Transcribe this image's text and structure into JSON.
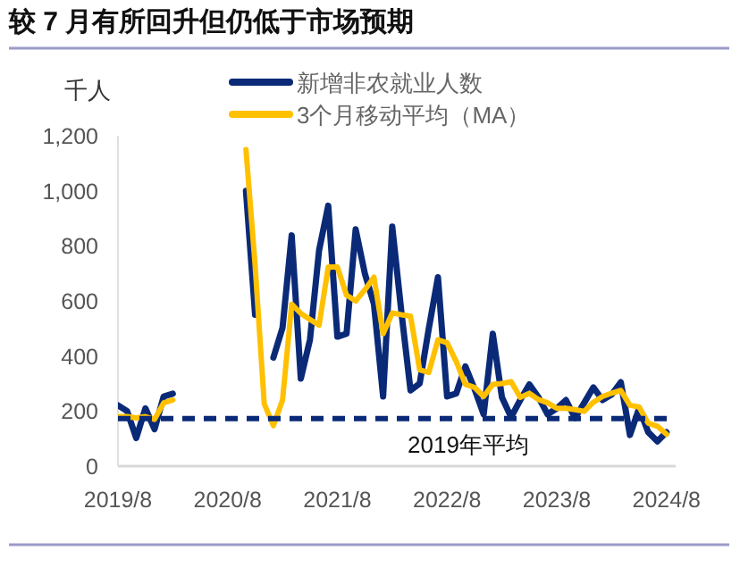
{
  "chart_data": {
    "type": "line",
    "title": "较 7 月有所回升但仍低于市场预期",
    "ylabel": "千人",
    "x": [
      "2019-08",
      "2019-09",
      "2019-10",
      "2019-11",
      "2019-12",
      "2020-01",
      "2020-02",
      "2020-03",
      "2020-04",
      "2020-05",
      "2020-06",
      "2020-07",
      "2020-08",
      "2020-09",
      "2020-10",
      "2020-11",
      "2020-12",
      "2021-01",
      "2021-02",
      "2021-03",
      "2021-04",
      "2021-05",
      "2021-06",
      "2021-07",
      "2021-08",
      "2021-09",
      "2021-10",
      "2021-11",
      "2021-12",
      "2022-01",
      "2022-02",
      "2022-03",
      "2022-04",
      "2022-05",
      "2022-06",
      "2022-07",
      "2022-08",
      "2022-09",
      "2022-10",
      "2022-11",
      "2022-12",
      "2023-01",
      "2023-02",
      "2023-03",
      "2023-04",
      "2023-05",
      "2023-06",
      "2023-07",
      "2023-08",
      "2023-09",
      "2023-10",
      "2023-11",
      "2023-12",
      "2024-01",
      "2024-02",
      "2024-03",
      "2024-04",
      "2024-05",
      "2024-06",
      "2024-07",
      "2024-08"
    ],
    "series": [
      {
        "name": "新增非农就业人数",
        "color": "#0a2a78",
        "values": [
          221,
          200,
          102,
          210,
          134,
          253,
          263,
          null,
          null,
          null,
          null,
          null,
          null,
          null,
          1000,
          550,
          null,
          394,
          503,
          838,
          318,
          459,
          784,
          946,
          470,
          481,
          860,
          700,
          589,
          253,
          870,
          560,
          275,
          300,
          500,
          686,
          253,
          264,
          362,
          280,
          188,
          481,
          250,
          178,
          240,
          297,
          250,
          188,
          210,
          240,
          175,
          230,
          286,
          240,
          260,
          305,
          113,
          210,
          123,
          90,
          123
        ]
      },
      {
        "name": "3个月移动平均（MA）",
        "color": "#ffc000",
        "values": [
          180,
          180,
          175,
          180,
          170,
          230,
          240,
          null,
          null,
          null,
          null,
          null,
          null,
          null,
          1150,
          730,
          226,
          147,
          240,
          588,
          555,
          533,
          512,
          723,
          723,
          621,
          600,
          640,
          686,
          481,
          556,
          550,
          545,
          350,
          340,
          459,
          448,
          380,
          297,
          286,
          253,
          297,
          300,
          307,
          250,
          264,
          242,
          230,
          210,
          210,
          205,
          199,
          232,
          253,
          265,
          275,
          221,
          215,
          156,
          145,
          116
        ]
      }
    ],
    "xlim": [
      "2019-08",
      "2024-09"
    ],
    "xticks": [
      {
        "value": "2019-08",
        "label": "2019/8"
      },
      {
        "value": "2020-08",
        "label": "2020/8"
      },
      {
        "value": "2021-08",
        "label": "2021/8"
      },
      {
        "value": "2022-08",
        "label": "2022/8"
      },
      {
        "value": "2023-08",
        "label": "2023/8"
      },
      {
        "value": "2024-08",
        "label": "2024/8"
      }
    ],
    "ylim": [
      0,
      1200
    ],
    "yticks": [
      0,
      200,
      400,
      600,
      800,
      {
        "value": 1000,
        "label": "1,000"
      },
      {
        "value": 1200,
        "label": "1,200"
      }
    ],
    "ref_lines": [
      {
        "axis": "y",
        "value": 173,
        "label": "2019年平均",
        "color": "#0a2a78",
        "line_style": "dashed"
      }
    ],
    "legend": "top",
    "grid": false,
    "marker": "none",
    "line_style": "solid"
  }
}
